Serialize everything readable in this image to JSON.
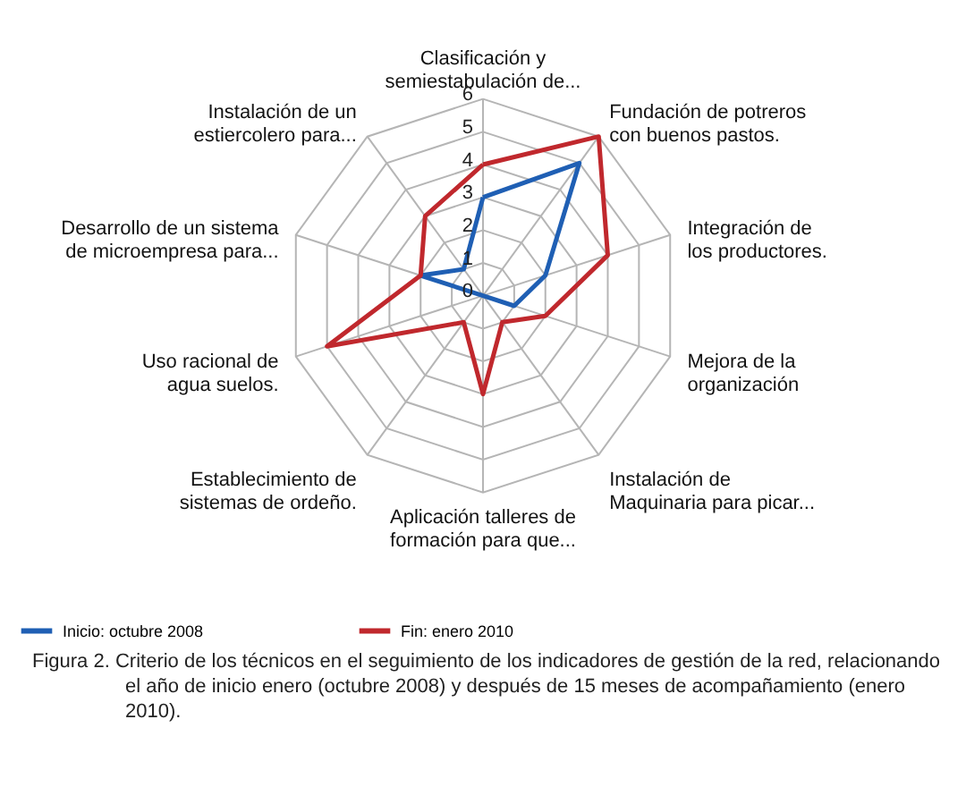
{
  "chart_data": {
    "type": "radar",
    "categories": [
      "Clasificación y semiestabulación de...",
      "Fundación de potreros con buenos pastos.",
      "Integración de los productores.",
      "Mejora de la organización",
      "Instalación de Maquinaria para picar...",
      "Aplicación talleres de formación para que...",
      "Establecimiento de sistemas de ordeño.",
      "Uso racional de agua suelos.",
      "Desarrollo de un sistema de microempresa para...",
      "Instalación de un estiercolero para..."
    ],
    "series": [
      {
        "name": "Inicio: octubre 2008",
        "color": "#1f5fb4",
        "values": [
          3,
          5,
          2,
          1,
          0,
          0,
          0,
          0,
          2,
          1
        ]
      },
      {
        "name": "Fin: enero 2010",
        "color": "#c0282d",
        "values": [
          4,
          6,
          4,
          2,
          1,
          3,
          1,
          5,
          2,
          3
        ]
      }
    ],
    "ylim": [
      0,
      6
    ],
    "yticks": [
      0,
      1,
      2,
      3,
      4,
      5,
      6
    ],
    "grid": true,
    "legend": "bottom",
    "annotations": [
      "Figura 2. Criterio de los técnicos en el seguimiento de los indicadores de gestión de la red, relacionando el año de inicio enero (octubre 2008) y después de 15 meses de acompañamiento (enero 2010)."
    ]
  }
}
